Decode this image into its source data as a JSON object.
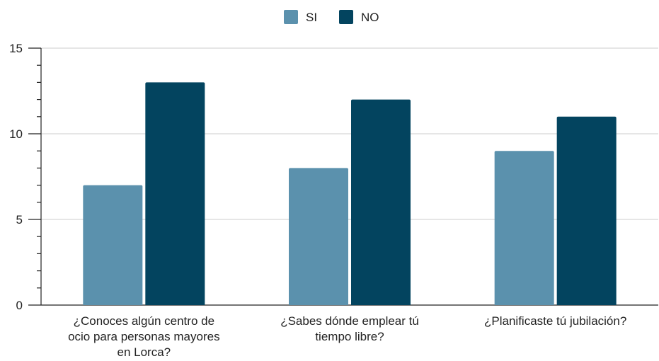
{
  "chart_data": {
    "type": "bar",
    "categories": [
      [
        "¿Conoces algún centro de",
        "ocio para personas mayores",
        "en Lorca?"
      ],
      [
        "¿Sabes dónde emplear tú",
        "tiempo libre?"
      ],
      [
        "¿Planificaste tú jubilación?"
      ]
    ],
    "series": [
      {
        "name": "SI",
        "color": "#5b91ad",
        "values": [
          7,
          8,
          9
        ]
      },
      {
        "name": "NO",
        "color": "#03445f",
        "values": [
          13,
          12,
          11
        ]
      }
    ],
    "ylim": [
      0,
      15
    ],
    "yticks": [
      "0",
      "5",
      "10",
      "15"
    ],
    "ytick_values": [
      0,
      5,
      10,
      15
    ],
    "grid": true,
    "legend_position": "top"
  }
}
